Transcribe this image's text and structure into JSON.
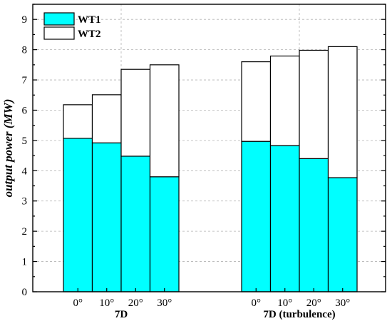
{
  "chart_data": {
    "type": "bar",
    "stacked": true,
    "title": "",
    "xlabel": "",
    "ylabel": "output power (MW)",
    "ylim": [
      0,
      9.5
    ],
    "yticks": [
      0,
      1,
      2,
      3,
      4,
      5,
      6,
      7,
      8,
      9
    ],
    "grid": true,
    "legend_position": "top-left",
    "groups": [
      {
        "label": "7D",
        "categories": [
          "0°",
          "10°",
          "20°",
          "30°"
        ],
        "series": [
          {
            "name": "WT1",
            "values": [
              5.07,
              4.92,
              4.48,
              3.8
            ]
          },
          {
            "name": "WT2",
            "values": [
              1.11,
              1.59,
              2.87,
              3.7
            ]
          }
        ],
        "totals": [
          6.18,
          6.51,
          7.35,
          7.5
        ]
      },
      {
        "label": "7D (turbulence)",
        "categories": [
          "0°",
          "10°",
          "20°",
          "30°"
        ],
        "series": [
          {
            "name": "WT1",
            "values": [
              4.97,
              4.83,
              4.4,
              3.77
            ]
          },
          {
            "name": "WT2",
            "values": [
              2.63,
              2.96,
              3.58,
              4.33
            ]
          }
        ],
        "totals": [
          7.6,
          7.79,
          7.98,
          8.1
        ]
      }
    ],
    "colors": {
      "WT1": "#00ffff",
      "WT2": "#ffffff"
    }
  }
}
